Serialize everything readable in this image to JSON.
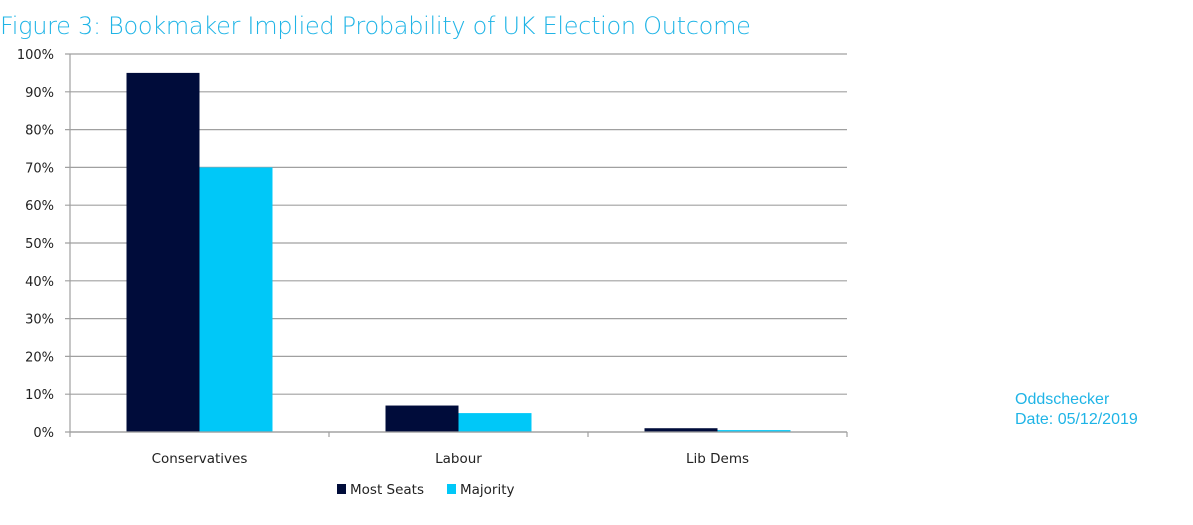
{
  "title": "Figure 3: Bookmaker Implied Probability of UK Election Outcome",
  "source": {
    "name": "Oddschecker",
    "date": "Date: 05/12/2019"
  },
  "colors": {
    "title": "#1fb4e6",
    "most_seats": "#000c3a",
    "majority": "#00c8f8",
    "grid": "#a0a0a0"
  },
  "chart_data": {
    "type": "bar",
    "title": "Figure 3: Bookmaker Implied Probability of UK Election Outcome",
    "xlabel": "",
    "ylabel": "",
    "categories": [
      "Conservatives",
      "Labour",
      "Lib Dems"
    ],
    "series": [
      {
        "name": "Most Seats",
        "values": [
          95,
          7,
          1
        ]
      },
      {
        "name": "Majority",
        "values": [
          70,
          5,
          0.5
        ]
      }
    ],
    "ylim": [
      0,
      100
    ],
    "yticks": [
      0,
      10,
      20,
      30,
      40,
      50,
      60,
      70,
      80,
      90,
      100
    ],
    "ytick_labels": [
      "0%",
      "10%",
      "20%",
      "30%",
      "40%",
      "50%",
      "60%",
      "70%",
      "80%",
      "90%",
      "100%"
    ],
    "grid": true,
    "legend_position": "bottom"
  }
}
